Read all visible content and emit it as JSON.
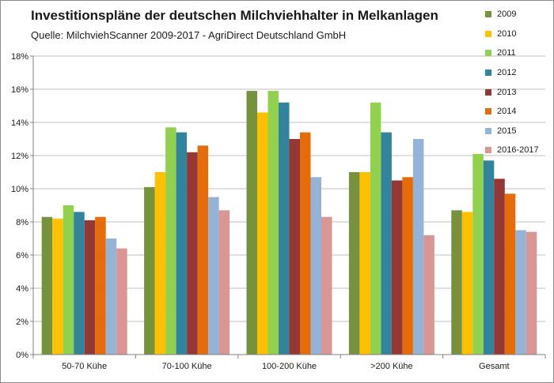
{
  "chart_data": {
    "type": "bar",
    "title": "Investitionspläne der deutschen Milchviehhalter in Melkanlagen",
    "subtitle": "Quelle: MilchviehScanner 2009-2017 - AgriDirect Deutschland GmbH",
    "categories": [
      "50-70 Kühe",
      "70-100 Kühe",
      "100-200 Kühe",
      ">200 Kühe",
      "Gesamt"
    ],
    "y_ticks": [
      "0%",
      "2%",
      "4%",
      "6%",
      "8%",
      "10%",
      "12%",
      "14%",
      "16%",
      "18%"
    ],
    "ylim": [
      0,
      18
    ],
    "grid": true,
    "legend_position": "right",
    "series": [
      {
        "name": "2009",
        "color": "#76923c",
        "values": [
          8.3,
          10.1,
          15.9,
          11.0,
          8.7
        ]
      },
      {
        "name": "2010",
        "color": "#ffc000",
        "values": [
          8.2,
          11.0,
          14.6,
          11.0,
          8.6
        ]
      },
      {
        "name": "2011",
        "color": "#92d050",
        "values": [
          9.0,
          13.7,
          15.9,
          15.2,
          12.1
        ]
      },
      {
        "name": "2012",
        "color": "#31849b",
        "values": [
          8.6,
          13.4,
          15.2,
          13.4,
          11.7
        ]
      },
      {
        "name": "2013",
        "color": "#953735",
        "values": [
          8.1,
          12.2,
          13.0,
          10.5,
          10.6
        ]
      },
      {
        "name": "2014",
        "color": "#e46c0a",
        "values": [
          8.3,
          12.6,
          13.4,
          10.7,
          9.7
        ]
      },
      {
        "name": "2015",
        "color": "#95b3d7",
        "values": [
          7.0,
          9.5,
          10.7,
          13.0,
          7.5
        ]
      },
      {
        "name": "2016-2017",
        "color": "#d99694",
        "values": [
          6.4,
          8.7,
          8.3,
          7.2,
          7.4
        ]
      }
    ]
  }
}
